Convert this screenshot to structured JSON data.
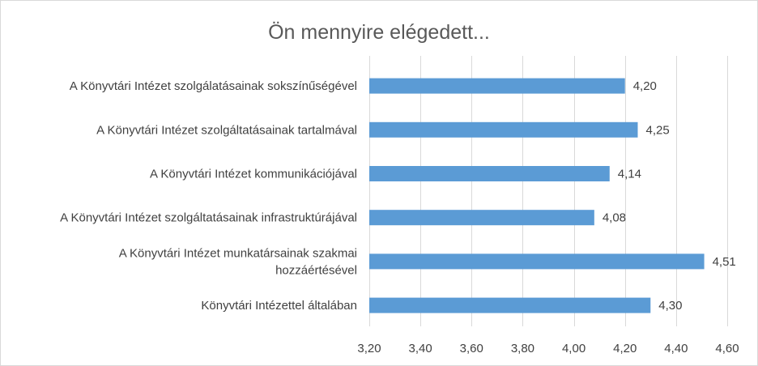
{
  "chart_data": {
    "type": "bar",
    "orientation": "horizontal",
    "title": "Ön mennyire elégedett...",
    "categories": [
      [
        "A Könyvtári Intézet szolgálatásainak sokszínűségével"
      ],
      [
        "A Könyvtári Intézet szolgáltatásainak tartalmával"
      ],
      [
        "A Könyvtári Intézet kommunikációjával"
      ],
      [
        "A Könyvtári Intézet szolgáltatásainak infrastruktúrájával"
      ],
      [
        "A Könyvtári Intézet munkatársainak szakmai",
        "hozzáértésével"
      ],
      [
        "Könyvtári Intézettel általában"
      ]
    ],
    "values": [
      4.2,
      4.25,
      4.14,
      4.08,
      4.51,
      4.3
    ],
    "value_labels": [
      "4,20",
      "4,25",
      "4,14",
      "4,08",
      "4,51",
      "4,30"
    ],
    "xlim": [
      3.2,
      4.6
    ],
    "xticks": [
      3.2,
      3.4,
      3.6,
      3.8,
      4.0,
      4.2,
      4.4,
      4.6
    ],
    "xtick_labels": [
      "3,20",
      "3,40",
      "3,60",
      "3,80",
      "4,00",
      "4,20",
      "4,40",
      "4,60"
    ],
    "grid": true,
    "legend": "none",
    "bar_color": "#5b9bd5",
    "grid_color": "#d9d9d9"
  }
}
